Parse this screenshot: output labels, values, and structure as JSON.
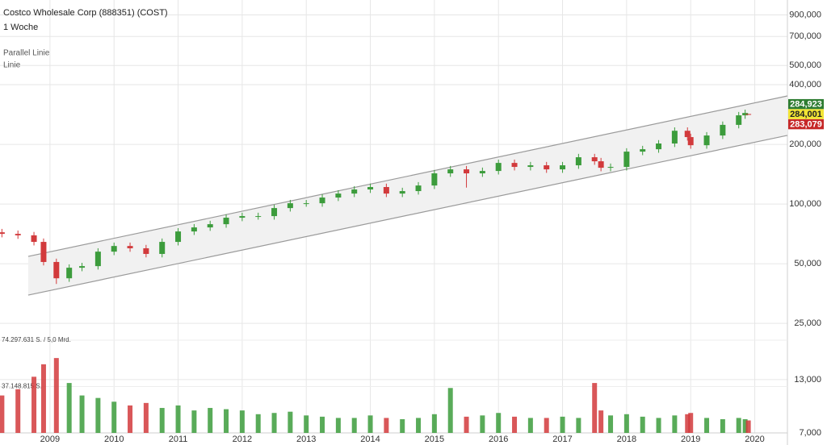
{
  "chart_data": {
    "type": "candlestick",
    "title": "Costco Wholesale Corp (888351) (COST)",
    "subtitle": "1 Woche",
    "annotations": [
      "Parallel Linie",
      "Linie"
    ],
    "log_y": true,
    "grid": true,
    "up_color": "#3c9c3c",
    "down_color": "#d23a3c",
    "xlim": [
      2008.22,
      2020.51
    ],
    "xticks": [
      2009,
      2010,
      2011,
      2012,
      2013,
      2014,
      2015,
      2016,
      2017,
      2018,
      2019,
      2020
    ],
    "ylim": [
      7000,
      1070000
    ],
    "yticks": [
      {
        "value": 7000,
        "label": "7,000"
      },
      {
        "value": 13000,
        "label": "13,000"
      },
      {
        "value": 25000,
        "label": "25,000"
      },
      {
        "value": 50000,
        "label": "50,000"
      },
      {
        "value": 100000,
        "label": "100,000"
      },
      {
        "value": 200000,
        "label": "200,000"
      },
      {
        "value": 400000,
        "label": "400,000"
      },
      {
        "value": 500000,
        "label": "500,000"
      },
      {
        "value": 700000,
        "label": "700,000"
      },
      {
        "value": 900000,
        "label": "900,000"
      }
    ],
    "x": [
      2008.25,
      2008.5,
      2008.75,
      2008.9,
      2009.1,
      2009.3,
      2009.5,
      2009.75,
      2010.0,
      2010.25,
      2010.5,
      2010.75,
      2011.0,
      2011.25,
      2011.5,
      2011.75,
      2012.0,
      2012.25,
      2012.5,
      2012.75,
      2013.0,
      2013.25,
      2013.5,
      2013.75,
      2014.0,
      2014.25,
      2014.5,
      2014.75,
      2015.0,
      2015.25,
      2015.5,
      2015.75,
      2016.0,
      2016.25,
      2016.5,
      2016.75,
      2017.0,
      2017.25,
      2017.5,
      2017.6,
      2017.75,
      2018.0,
      2018.25,
      2018.5,
      2018.75,
      2018.95,
      2019.0,
      2019.25,
      2019.5,
      2019.75,
      2019.85,
      2019.9
    ],
    "open": [
      72000,
      70700,
      69500,
      64400,
      51000,
      42200,
      47700,
      48600,
      57500,
      61400,
      59800,
      56000,
      64400,
      72700,
      76200,
      79100,
      85300,
      86900,
      86900,
      95400,
      100900,
      100900,
      107800,
      112900,
      118400,
      121800,
      112900,
      116200,
      124000,
      142800,
      149600,
      142800,
      146800,
      161200,
      153900,
      156800,
      149600,
      156800,
      172200,
      164300,
      152400,
      153900,
      183800,
      189000,
      202000,
      234200,
      217600,
      198000,
      221700,
      250800,
      280200,
      284500
    ],
    "high": [
      74900,
      73500,
      72300,
      67000,
      53000,
      49600,
      50500,
      59800,
      63900,
      63900,
      62200,
      67000,
      75600,
      79200,
      82300,
      88700,
      90400,
      90400,
      99200,
      104900,
      104900,
      112100,
      117400,
      123100,
      126700,
      126700,
      120800,
      129000,
      148500,
      155600,
      155600,
      152700,
      167600,
      167600,
      163100,
      163100,
      163100,
      179100,
      179100,
      170900,
      160100,
      191200,
      196600,
      210100,
      243600,
      243600,
      226300,
      230600,
      260800,
      291400,
      299500,
      284923
    ],
    "low": [
      67900,
      66700,
      61800,
      49000,
      39500,
      40500,
      45800,
      46700,
      55200,
      57400,
      53800,
      53800,
      61800,
      69800,
      73200,
      75900,
      81900,
      83400,
      83400,
      91600,
      96900,
      96900,
      103500,
      108400,
      113700,
      108400,
      108400,
      111600,
      119000,
      137100,
      121000,
      137100,
      140900,
      147700,
      147700,
      143600,
      143600,
      150500,
      157700,
      146300,
      146300,
      147700,
      176400,
      181400,
      193900,
      208900,
      190100,
      190100,
      212800,
      240800,
      269000,
      283079
    ],
    "close": [
      70700,
      69500,
      64400,
      51000,
      42200,
      47700,
      48600,
      57500,
      61400,
      59800,
      56000,
      64400,
      72700,
      76200,
      79100,
      85300,
      86900,
      86900,
      95400,
      100900,
      100900,
      107800,
      112900,
      118400,
      121800,
      112900,
      116200,
      124000,
      142800,
      149600,
      142800,
      146800,
      161200,
      153900,
      156800,
      149600,
      156800,
      172200,
      164300,
      152400,
      153900,
      183800,
      189000,
      202000,
      234200,
      217600,
      198000,
      221700,
      250800,
      280200,
      288000,
      284001
    ],
    "volume": [
      30000000,
      35000000,
      45000000,
      55000000,
      60000000,
      40000000,
      30000000,
      28000000,
      25000000,
      22000000,
      24000000,
      20000000,
      22000000,
      18000000,
      20000000,
      19000000,
      18000000,
      15000000,
      16000000,
      17000000,
      14000000,
      13000000,
      12000000,
      12000000,
      14000000,
      12000000,
      11000000,
      12000000,
      15000000,
      36000000,
      13000000,
      14000000,
      16000000,
      13000000,
      12000000,
      12000000,
      13000000,
      12000000,
      40000000,
      18000000,
      14000000,
      15000000,
      13000000,
      12000000,
      14000000,
      15000000,
      16000000,
      12000000,
      11000000,
      12000000,
      11000000,
      10000000
    ],
    "vlim": [
      0,
      74297631
    ],
    "vticks": [
      {
        "value": 74297631,
        "label": "74.297.631 S. / 5,0 Mrd."
      },
      {
        "value": 37148815,
        "label": "37.148.815 S."
      }
    ],
    "channel": {
      "x": [
        2008.66,
        2020.51
      ],
      "upper": [
        54400,
        351000
      ],
      "lower": [
        34700,
        222000
      ],
      "color": "#9a9a9a"
    },
    "price_markers": [
      {
        "value": 284923,
        "label": "284,923",
        "color": "#2e7d32",
        "text_color": "#ffffff"
      },
      {
        "value": 284001,
        "label": "284,001",
        "color": "#f2e534",
        "text_color": "#222222"
      },
      {
        "value": 283079,
        "label": "283,079",
        "color": "#c62828",
        "text_color": "#ffffff"
      }
    ]
  }
}
